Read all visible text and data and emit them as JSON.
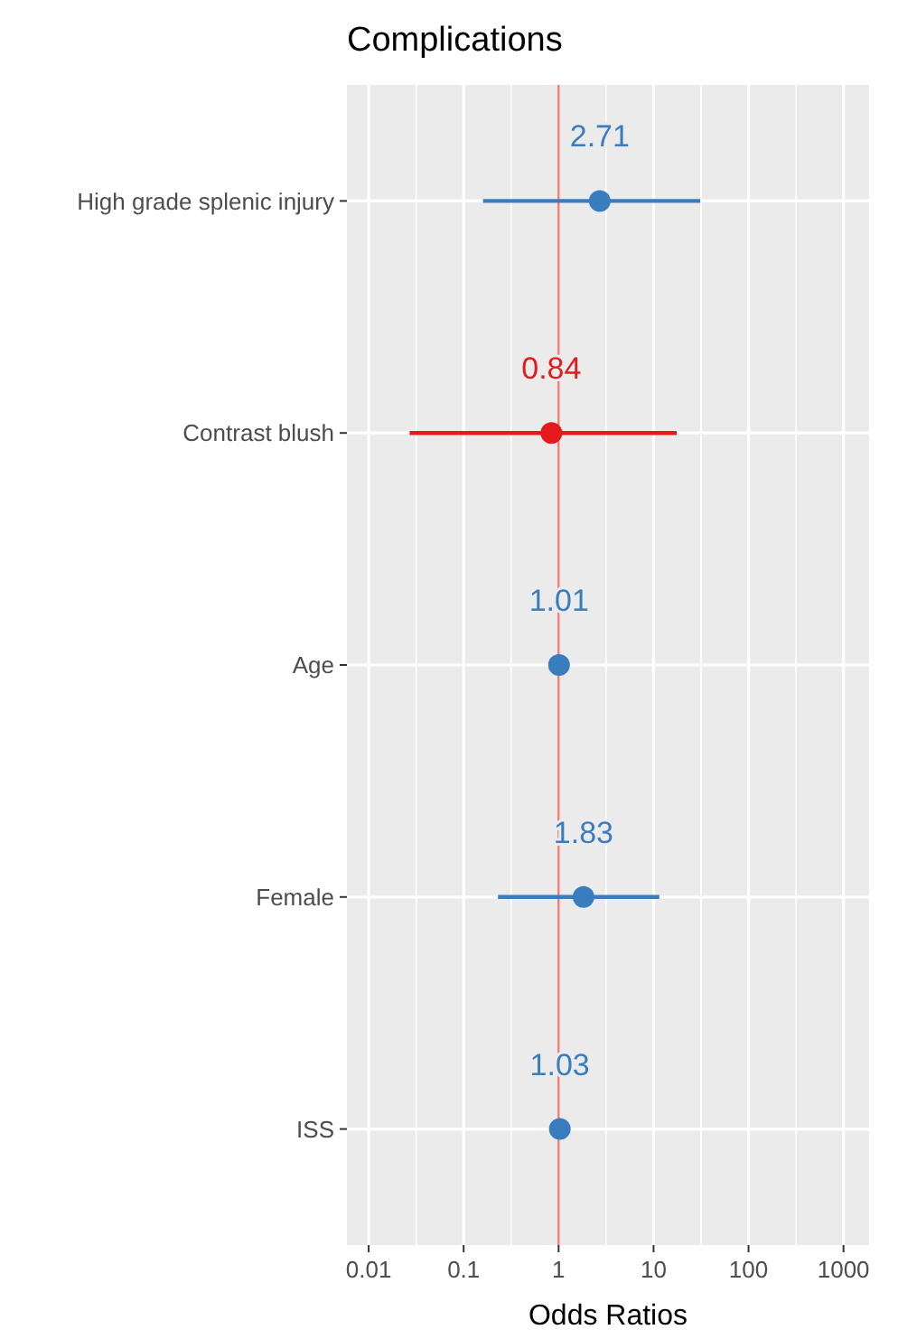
{
  "chart_data": {
    "type": "scatter",
    "title": "Complications",
    "xlabel": "Odds Ratios",
    "orientation": "horizontal",
    "categories": [
      "High grade splenic injury",
      "Contrast blush",
      "Age",
      "Female",
      "ISS"
    ],
    "values": [
      2.71,
      0.84,
      1.01,
      1.83,
      1.03
    ],
    "errors": [
      [
        0.16,
        31
      ],
      [
        0.027,
        17.5
      ],
      null,
      [
        0.23,
        11.5
      ],
      null
    ],
    "colors": [
      "#3a7dbf",
      "#e41a1c",
      "#3a7dbf",
      "#3a7dbf",
      "#3a7dbf"
    ],
    "data_labels": true,
    "log": "x",
    "xlim": [
      0.0059,
      1860
    ],
    "xticks": [
      0.01,
      0.1,
      1,
      10,
      100,
      1000
    ],
    "grid": true,
    "marker": "circle",
    "ref_lines": [
      {
        "axis": "x",
        "value": 1,
        "color": "#f8766d"
      }
    ]
  }
}
